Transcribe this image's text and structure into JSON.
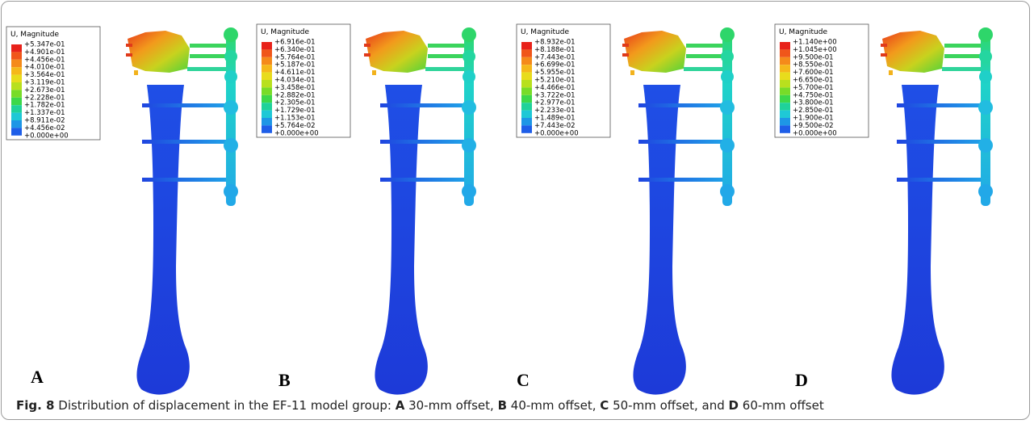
{
  "panels": [
    {
      "label": "A",
      "legend": {
        "title": "U, Magnitude",
        "values": [
          "+5.347e-01",
          "+4.901e-01",
          "+4.456e-01",
          "+4.010e-01",
          "+3.564e-01",
          "+3.119e-01",
          "+2.673e-01",
          "+2.228e-01",
          "+1.782e-01",
          "+1.337e-01",
          "+8.911e-02",
          "+4.456e-02",
          "+0.000e+00"
        ]
      }
    },
    {
      "label": "B",
      "legend": {
        "title": "U, Magnitude",
        "values": [
          "+6.916e-01",
          "+6.340e-01",
          "+5.764e-01",
          "+5.187e-01",
          "+4.611e-01",
          "+4.034e-01",
          "+3.458e-01",
          "+2.882e-01",
          "+2.305e-01",
          "+1.729e-01",
          "+1.153e-01",
          "+5.764e-02",
          "+0.000e+00"
        ]
      }
    },
    {
      "label": "C",
      "legend": {
        "title": "U, Magnitude",
        "values": [
          "+8.932e-01",
          "+8.188e-01",
          "+7.443e-01",
          "+6.699e-01",
          "+5.955e-01",
          "+5.210e-01",
          "+4.466e-01",
          "+3.722e-01",
          "+2.977e-01",
          "+2.233e-01",
          "+1.489e-01",
          "+7.443e-02",
          "+0.000e+00"
        ]
      }
    },
    {
      "label": "D",
      "legend": {
        "title": "U, Magnitude",
        "values": [
          "+1.140e+00",
          "+1.045e+00",
          "+9.500e-01",
          "+8.550e-01",
          "+7.600e-01",
          "+6.650e-01",
          "+5.700e-01",
          "+4.750e-01",
          "+3.800e-01",
          "+2.850e-01",
          "+1.900e-01",
          "+9.500e-02",
          "+0.000e+00"
        ]
      }
    }
  ],
  "caption": {
    "label": "Fig. 8",
    "intro": "Distribution of displacement in the EF-11 model group:",
    "items": [
      {
        "letter": "A",
        "text": "30-mm offset,"
      },
      {
        "letter": "B",
        "text": "40-mm offset,"
      },
      {
        "letter": "C",
        "text": "50-mm offset, and"
      },
      {
        "letter": "D",
        "text": "60-mm offset"
      }
    ]
  }
}
